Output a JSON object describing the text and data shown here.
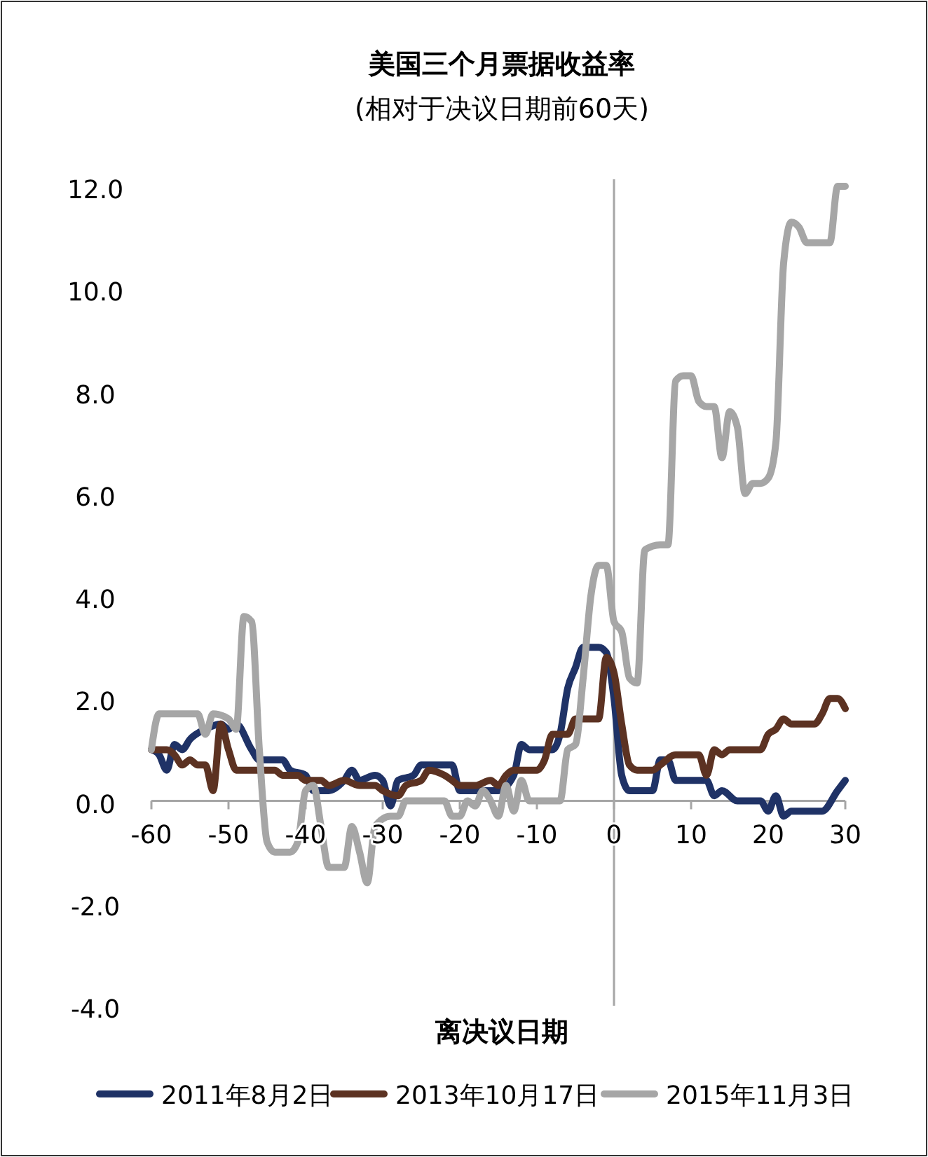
{
  "chart_data": {
    "type": "line",
    "title": "美国三个月票据收益率",
    "subtitle": "(相对于决议日期前60天)",
    "xlabel": "离决议日期",
    "xlim": [
      -60,
      30
    ],
    "xticks": [
      -60,
      -50,
      -40,
      -30,
      -20,
      -10,
      0,
      10,
      20,
      30
    ],
    "ylim": [
      -4,
      12
    ],
    "yticks": [
      {
        "value": -4,
        "label": "-4.0"
      },
      {
        "value": -2,
        "label": "-2.0"
      },
      {
        "value": 0,
        "label": "0.0"
      },
      {
        "value": 2,
        "label": "2.0"
      },
      {
        "value": 4,
        "label": "4.0"
      },
      {
        "value": 6,
        "label": "6.0"
      },
      {
        "value": 8,
        "label": "8.0"
      },
      {
        "value": 10,
        "label": "10.0"
      },
      {
        "value": 12,
        "label": "12.0"
      }
    ],
    "grid": false,
    "legend": "bottom",
    "marker": "none",
    "line_style": "solid",
    "ref_lines": [
      {
        "axis": "x",
        "value": 0,
        "color": "#a6a6a6"
      }
    ],
    "series": [
      {
        "name": "2011年8月2日",
        "color": "#1f3266",
        "x": [
          -60,
          -59,
          -58,
          -57,
          -56,
          -55,
          -53,
          -51,
          -50,
          -49,
          -47,
          -46,
          -43,
          -42,
          -40,
          -39,
          -37,
          -35,
          -34,
          -33,
          -31,
          -30,
          -29,
          -28,
          -26,
          -25,
          -22,
          -21,
          -20,
          -15,
          -13,
          -12,
          -11,
          -8,
          -7,
          -6,
          -5,
          -4,
          -2,
          -1,
          0,
          1,
          2,
          5,
          6,
          7,
          8,
          12,
          13,
          14,
          16,
          19,
          20,
          21,
          22,
          23,
          27,
          29,
          30
        ],
        "values": [
          1.0,
          0.9,
          0.6,
          1.1,
          1.0,
          1.2,
          1.4,
          1.5,
          1.4,
          1.5,
          1.0,
          0.8,
          0.8,
          0.6,
          0.5,
          0.2,
          0.2,
          0.4,
          0.6,
          0.4,
          0.5,
          0.4,
          -0.1,
          0.4,
          0.5,
          0.7,
          0.7,
          0.7,
          0.2,
          0.2,
          0.5,
          1.1,
          1.0,
          1.0,
          1.3,
          2.2,
          2.6,
          3.0,
          3.0,
          2.9,
          2.0,
          0.5,
          0.2,
          0.2,
          0.8,
          0.8,
          0.4,
          0.4,
          0.1,
          0.2,
          0.0,
          0.0,
          -0.2,
          0.1,
          -0.3,
          -0.2,
          -0.2,
          0.2,
          0.4
        ]
      },
      {
        "name": "2013年10月17日",
        "color": "#5c3222",
        "x": [
          -60,
          -58,
          -57,
          -56,
          -55,
          -54,
          -53,
          -52,
          -51,
          -50,
          -49,
          -46,
          -44,
          -43,
          -41,
          -40,
          -38,
          -37,
          -35,
          -33,
          -31,
          -30,
          -28,
          -27,
          -25,
          -24,
          -22,
          -21,
          -20,
          -18,
          -16,
          -15,
          -14,
          -13,
          -10,
          -9,
          -8,
          -6,
          -5,
          -2,
          -1,
          0,
          1,
          2,
          3,
          5,
          6,
          8,
          11,
          12,
          13,
          14,
          15,
          19,
          20,
          21,
          22,
          23,
          26,
          27,
          28,
          29,
          30
        ],
        "values": [
          1.0,
          1.0,
          0.9,
          0.7,
          0.8,
          0.7,
          0.7,
          0.2,
          1.5,
          1.0,
          0.6,
          0.6,
          0.6,
          0.5,
          0.5,
          0.4,
          0.4,
          0.3,
          0.4,
          0.3,
          0.3,
          0.2,
          0.1,
          0.3,
          0.4,
          0.6,
          0.5,
          0.4,
          0.3,
          0.3,
          0.4,
          0.3,
          0.5,
          0.6,
          0.6,
          0.8,
          1.3,
          1.3,
          1.6,
          1.6,
          2.8,
          2.5,
          1.5,
          0.7,
          0.6,
          0.6,
          0.7,
          0.9,
          0.9,
          0.5,
          1.0,
          0.9,
          1.0,
          1.0,
          1.3,
          1.4,
          1.6,
          1.5,
          1.5,
          1.7,
          2.0,
          2.0,
          1.8
        ]
      },
      {
        "name": "2015年11月3日",
        "color": "#a6a6a6",
        "x": [
          -60,
          -59,
          -54,
          -53,
          -52,
          -50,
          -49,
          -48,
          -47,
          -46,
          -45,
          -44,
          -42,
          -41,
          -40,
          -39,
          -38,
          -37,
          -35,
          -34,
          -33,
          -32,
          -31,
          -29,
          -28,
          -27,
          -22,
          -21,
          -20,
          -19,
          -18,
          -17,
          -16,
          -15,
          -14,
          -13,
          -12,
          -11,
          -7,
          -6,
          -5,
          -4,
          -3,
          -2,
          -1,
          0,
          1,
          2,
          3,
          4,
          6,
          7,
          8,
          9,
          10,
          11,
          12,
          13,
          14,
          15,
          16,
          17,
          18,
          19,
          20,
          21,
          22,
          23,
          24,
          25,
          28,
          29,
          30
        ],
        "values": [
          1.0,
          1.7,
          1.7,
          1.3,
          1.7,
          1.6,
          1.4,
          3.6,
          3.5,
          1.0,
          -0.8,
          -1.0,
          -1.0,
          -0.8,
          0.2,
          0.3,
          -0.5,
          -1.3,
          -1.3,
          -0.5,
          -1.0,
          -1.6,
          -0.5,
          -0.3,
          -0.3,
          0.0,
          0.0,
          -0.3,
          -0.3,
          0.0,
          -0.1,
          0.2,
          0.0,
          -0.3,
          0.3,
          -0.2,
          0.4,
          0.0,
          0.0,
          1.0,
          1.1,
          2.4,
          4.0,
          4.6,
          4.6,
          3.5,
          3.3,
          2.4,
          2.3,
          4.9,
          5.0,
          5.0,
          8.2,
          8.3,
          8.3,
          7.8,
          7.7,
          7.7,
          6.7,
          7.6,
          7.3,
          6.0,
          6.2,
          6.2,
          6.3,
          7.0,
          10.5,
          11.3,
          11.2,
          10.9,
          10.9,
          12.0,
          12.0
        ]
      }
    ]
  }
}
